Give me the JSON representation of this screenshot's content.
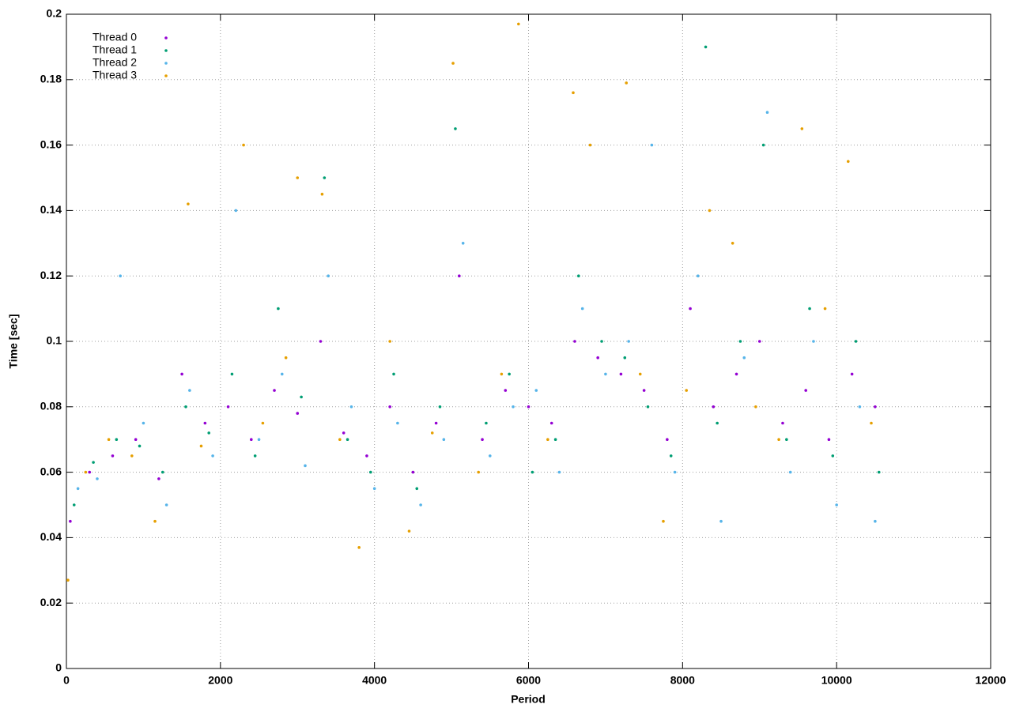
{
  "chart_data": {
    "type": "scatter",
    "x_label": "Period",
    "y_label": "Time [sec]",
    "xlim": [
      0,
      12000
    ],
    "xticks": [
      0,
      2000,
      4000,
      6000,
      8000,
      10000,
      12000
    ],
    "ylim": [
      0,
      0.2
    ],
    "yticks": [
      0,
      0.02,
      0.04,
      0.06,
      0.08,
      0.1,
      0.12,
      0.14,
      0.16,
      0.18,
      0.2
    ],
    "grid": true,
    "legend": "top-left",
    "series": [
      {
        "name": "Thread 0",
        "color": "#9400d3",
        "x": [
          50,
          300,
          600,
          900,
          1200,
          1500,
          1800,
          2100,
          2400,
          2700,
          3000,
          3300,
          3600,
          3900,
          4200,
          4500,
          4800,
          5100,
          5400,
          5700,
          6000,
          6300,
          6600,
          6900,
          7200,
          7500,
          7800,
          8100,
          8400,
          8700,
          9000,
          9300,
          9600,
          9900,
          10200,
          10500
        ],
        "values": [
          0.045,
          0.06,
          0.065,
          0.07,
          0.058,
          0.09,
          0.075,
          0.08,
          0.07,
          0.085,
          0.078,
          0.1,
          0.072,
          0.065,
          0.08,
          0.06,
          0.075,
          0.12,
          0.07,
          0.085,
          0.08,
          0.075,
          0.1,
          0.095,
          0.09,
          0.085,
          0.07,
          0.11,
          0.08,
          0.09,
          0.1,
          0.075,
          0.085,
          0.07,
          0.09,
          0.08
        ]
      },
      {
        "name": "Thread 1",
        "color": "#009e73",
        "x": [
          100,
          350,
          650,
          950,
          1250,
          1550,
          1850,
          2150,
          2450,
          2750,
          3050,
          3350,
          3650,
          3950,
          4250,
          4550,
          4850,
          5050,
          5450,
          5750,
          6050,
          6350,
          6650,
          6950,
          7250,
          7550,
          7850,
          8300,
          8450,
          8750,
          9050,
          9350,
          9650,
          9950,
          10250,
          10550
        ],
        "values": [
          0.05,
          0.063,
          0.07,
          0.068,
          0.06,
          0.08,
          0.072,
          0.09,
          0.065,
          0.11,
          0.083,
          0.15,
          0.07,
          0.06,
          0.09,
          0.055,
          0.08,
          0.165,
          0.075,
          0.09,
          0.06,
          0.07,
          0.12,
          0.1,
          0.095,
          0.08,
          0.065,
          0.19,
          0.075,
          0.1,
          0.16,
          0.07,
          0.11,
          0.065,
          0.1,
          0.06
        ]
      },
      {
        "name": "Thread 2",
        "color": "#56b4e9",
        "x": [
          150,
          400,
          700,
          1000,
          1300,
          1600,
          1900,
          2200,
          2500,
          2800,
          3100,
          3400,
          3700,
          4000,
          4300,
          4600,
          4900,
          5150,
          5500,
          5800,
          6100,
          6400,
          6700,
          7000,
          7300,
          7600,
          7900,
          8200,
          8500,
          8800,
          9100,
          9400,
          9700,
          10000,
          10300,
          10500
        ],
        "values": [
          0.055,
          0.058,
          0.12,
          0.075,
          0.05,
          0.085,
          0.065,
          0.14,
          0.07,
          0.09,
          0.062,
          0.12,
          0.08,
          0.055,
          0.075,
          0.05,
          0.07,
          0.13,
          0.065,
          0.08,
          0.085,
          0.06,
          0.11,
          0.09,
          0.1,
          0.16,
          0.06,
          0.12,
          0.045,
          0.095,
          0.17,
          0.06,
          0.1,
          0.05,
          0.08,
          0.045
        ]
      },
      {
        "name": "Thread 3",
        "color": "#e69f00",
        "x": [
          20,
          250,
          550,
          850,
          1150,
          1580,
          1750,
          2300,
          2550,
          2850,
          3000,
          3320,
          3550,
          3800,
          4200,
          4450,
          4750,
          5020,
          5350,
          5650,
          5870,
          6250,
          6580,
          6800,
          7270,
          7450,
          7750,
          8050,
          8350,
          8650,
          8950,
          9250,
          9550,
          9850,
          10150,
          10450
        ],
        "values": [
          0.027,
          0.06,
          0.07,
          0.065,
          0.045,
          0.142,
          0.068,
          0.16,
          0.075,
          0.095,
          0.15,
          0.145,
          0.07,
          0.037,
          0.1,
          0.042,
          0.072,
          0.185,
          0.06,
          0.09,
          0.197,
          0.07,
          0.176,
          0.16,
          0.179,
          0.09,
          0.045,
          0.085,
          0.14,
          0.13,
          0.08,
          0.07,
          0.165,
          0.11,
          0.155,
          0.075
        ]
      }
    ]
  }
}
